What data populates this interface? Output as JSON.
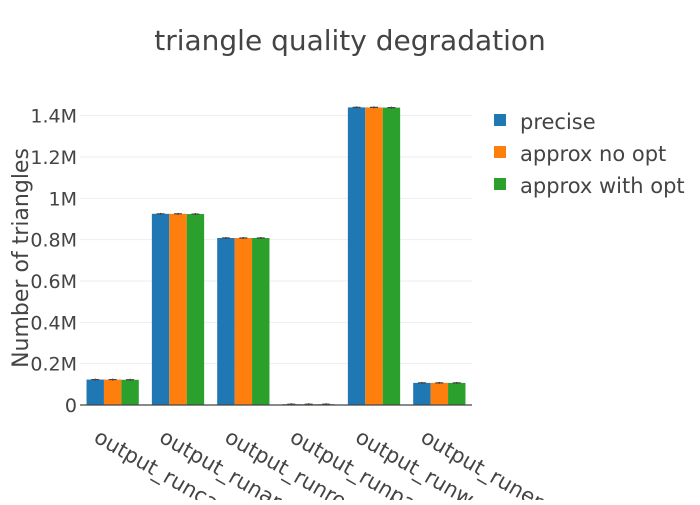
{
  "chart_data": {
    "type": "bar",
    "title": "triangle quality degradation",
    "xlabel": "",
    "ylabel": "Number of triangles",
    "ylim": [
      0,
      1500000
    ],
    "yticks": [
      0,
      200000,
      400000,
      600000,
      800000,
      1000000,
      1200000,
      1400000
    ],
    "yticklabels": [
      "0",
      "0.2M",
      "0.4M",
      "0.6M",
      "0.8M",
      "1M",
      "1.2M",
      "1.4M"
    ],
    "categories": [
      "output_runca",
      "output_runar",
      "output_runro",
      "output_runpa",
      "output_runw",
      "output_runen"
    ],
    "series": [
      {
        "name": "precise",
        "color": "#1f77b4",
        "values": [
          123000,
          925000,
          808000,
          4000,
          1440000,
          107000
        ]
      },
      {
        "name": "approx no opt",
        "color": "#ff7f0e",
        "values": [
          123000,
          925000,
          808000,
          4000,
          1440000,
          107000
        ]
      },
      {
        "name": "approx with opt",
        "color": "#2ca02c",
        "values": [
          122000,
          924000,
          808000,
          4000,
          1439000,
          107000
        ]
      }
    ],
    "error_bars": true,
    "grid": true,
    "legend_position": "top-right"
  }
}
